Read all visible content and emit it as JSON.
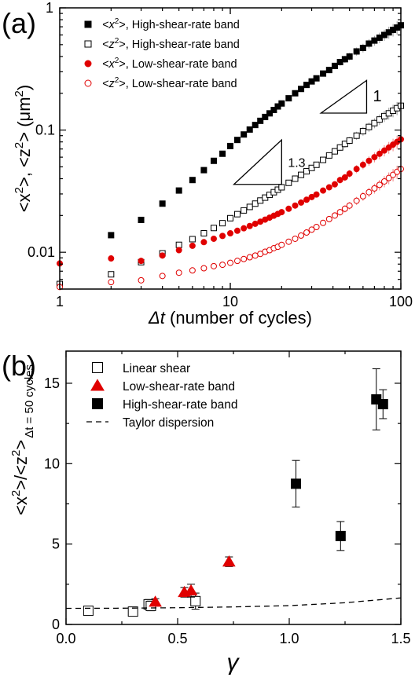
{
  "chart_data": [
    {
      "panel_label": "(a)",
      "type": "scatter",
      "x_scale": "log",
      "y_scale": "log",
      "xlim": [
        1,
        100
      ],
      "ylim": [
        0.005,
        1
      ],
      "x_ticks": [
        1,
        10,
        100
      ],
      "x_tick_labels": [
        "1",
        "10",
        "100"
      ],
      "y_ticks": [
        0.01,
        0.1,
        1
      ],
      "y_tick_labels": [
        "0.01",
        "0.1",
        "1"
      ],
      "xlabel_symbol": "Δt",
      "xlabel_text": " (number of cycles)",
      "ylabel": "<x 2>, <z 2> (μm2)",
      "legend_position": "top-left",
      "series": [
        {
          "name": "<x 2>, High-shear-rate band",
          "legend_text": ", High-shear-rate band",
          "legend_var": "<x 2>",
          "marker": "filled-square",
          "color": "#000000",
          "x": [
            2,
            3,
            4,
            5,
            6,
            7,
            8,
            9,
            10,
            11,
            12,
            13,
            14,
            15,
            16,
            17,
            18,
            19,
            20,
            22,
            24,
            26,
            28,
            30,
            32,
            35,
            38,
            41,
            44,
            47,
            50,
            55,
            60,
            65,
            70,
            75,
            80,
            85,
            90,
            95,
            100
          ],
          "y": [
            0.0138,
            0.0184,
            0.025,
            0.032,
            0.039,
            0.047,
            0.056,
            0.064,
            0.074,
            0.083,
            0.092,
            0.101,
            0.11,
            0.119,
            0.128,
            0.137,
            0.146,
            0.156,
            0.165,
            0.182,
            0.2,
            0.217,
            0.234,
            0.25,
            0.265,
            0.29,
            0.31,
            0.335,
            0.36,
            0.38,
            0.4,
            0.44,
            0.47,
            0.51,
            0.54,
            0.57,
            0.6,
            0.63,
            0.66,
            0.69,
            0.72
          ]
        },
        {
          "name": "<z 2>, High-shear-rate band",
          "legend_text": ", High-shear-rate band",
          "legend_var": "<z 2>",
          "marker": "open-square",
          "color": "#000000",
          "x": [
            1,
            2,
            3,
            4,
            5,
            6,
            7,
            8,
            9,
            10,
            11,
            12,
            13,
            14,
            15,
            16,
            17,
            18,
            19,
            20,
            22,
            24,
            26,
            28,
            30,
            32,
            35,
            38,
            41,
            44,
            47,
            50,
            55,
            60,
            65,
            70,
            75,
            80,
            85,
            90,
            95,
            100
          ],
          "y": [
            0.0055,
            0.0066,
            0.0083,
            0.0098,
            0.0115,
            0.0128,
            0.0143,
            0.0158,
            0.0173,
            0.019,
            0.0205,
            0.022,
            0.0235,
            0.025,
            0.0265,
            0.028,
            0.0295,
            0.031,
            0.0325,
            0.034,
            0.037,
            0.04,
            0.043,
            0.046,
            0.049,
            0.052,
            0.057,
            0.062,
            0.067,
            0.072,
            0.077,
            0.082,
            0.09,
            0.098,
            0.106,
            0.114,
            0.122,
            0.13,
            0.137,
            0.144,
            0.151,
            0.158
          ]
        },
        {
          "name": "<x 2>, Low-shear-rate band",
          "legend_text": ", Low-shear-rate band",
          "legend_var": "<x 2>",
          "marker": "filled-circle",
          "color": "#e00000",
          "x": [
            1,
            2,
            3,
            4,
            5,
            6,
            7,
            8,
            9,
            10,
            11,
            12,
            13,
            14,
            15,
            16,
            17,
            18,
            19,
            20,
            22,
            24,
            26,
            28,
            30,
            32,
            35,
            38,
            41,
            44,
            47,
            50,
            55,
            60,
            65,
            70,
            75,
            80,
            85,
            90,
            95,
            100
          ],
          "y": [
            0.0081,
            0.0089,
            0.0085,
            0.0094,
            0.0104,
            0.0113,
            0.0121,
            0.0129,
            0.0136,
            0.0143,
            0.015,
            0.0157,
            0.0164,
            0.0171,
            0.0178,
            0.0185,
            0.0192,
            0.0199,
            0.0206,
            0.0213,
            0.0227,
            0.0241,
            0.0255,
            0.0269,
            0.0283,
            0.0297,
            0.032,
            0.034,
            0.036,
            0.039,
            0.041,
            0.044,
            0.048,
            0.052,
            0.056,
            0.06,
            0.064,
            0.068,
            0.072,
            0.076,
            0.08,
            0.084
          ]
        },
        {
          "name": "<z 2>, Low-shear-rate band",
          "legend_text": ", Low-shear-rate band",
          "legend_var": "<z 2>",
          "marker": "open-circle",
          "color": "#e00000",
          "x": [
            1,
            2,
            3,
            4,
            5,
            6,
            7,
            8,
            9,
            10,
            11,
            12,
            13,
            14,
            15,
            16,
            17,
            18,
            19,
            20,
            22,
            24,
            26,
            28,
            30,
            32,
            35,
            38,
            41,
            44,
            47,
            50,
            55,
            60,
            65,
            70,
            75,
            80,
            85,
            90,
            95,
            100
          ],
          "y": [
            0.0052,
            0.0057,
            0.0059,
            0.0064,
            0.0068,
            0.0071,
            0.0074,
            0.0077,
            0.0079,
            0.0082,
            0.0085,
            0.0088,
            0.0091,
            0.0094,
            0.0097,
            0.0101,
            0.0104,
            0.0108,
            0.0111,
            0.0115,
            0.0122,
            0.0129,
            0.0137,
            0.0145,
            0.0153,
            0.0161,
            0.0174,
            0.0187,
            0.02,
            0.0213,
            0.0227,
            0.0241,
            0.0264,
            0.0287,
            0.031,
            0.0333,
            0.0356,
            0.038,
            0.0405,
            0.043,
            0.0455,
            0.048
          ]
        }
      ],
      "annotations": [
        {
          "label": "1.3",
          "slope": 1.3,
          "x_start": 10.5,
          "x_end": 20,
          "y_at_end": 0.083
        },
        {
          "label": "1",
          "slope": 1,
          "x_start": 34,
          "x_end": 63,
          "y_at_end": 0.255
        }
      ]
    },
    {
      "panel_label": "(b)",
      "type": "scatter",
      "xlim": [
        0.0,
        1.5
      ],
      "ylim": [
        0,
        17
      ],
      "x_ticks": [
        0.0,
        0.5,
        1.0,
        1.5
      ],
      "x_tick_labels": [
        "0.0",
        "0.5",
        "1.0",
        "1.5"
      ],
      "y_ticks": [
        0,
        5,
        10,
        15
      ],
      "y_tick_labels": [
        "0",
        "5",
        "10",
        "15"
      ],
      "xlabel": "γ",
      "ylabel_main": "<x 2>/<z 2>",
      "ylabel_sub": "Δt = 50 cycles",
      "legend_position": "top-left",
      "series": [
        {
          "name": "Linear shear",
          "marker": "open-square",
          "color": "#000000",
          "points": [
            {
              "x": 0.1,
              "y": 0.85,
              "err": 0.2
            },
            {
              "x": 0.3,
              "y": 0.8,
              "err": 0.2
            },
            {
              "x": 0.37,
              "y": 1.25,
              "err": 0.3
            },
            {
              "x": 0.38,
              "y": 1.15,
              "err": 0.3
            },
            {
              "x": 0.58,
              "y": 1.45,
              "err": 0.5
            }
          ]
        },
        {
          "name": "Low-shear-rate band",
          "marker": "filled-triangle",
          "color": "#e00000",
          "points": [
            {
              "x": 0.4,
              "y": 1.4,
              "err": 0.2
            },
            {
              "x": 0.53,
              "y": 2.0,
              "err": 0.3
            },
            {
              "x": 0.56,
              "y": 2.1,
              "err": 0.4
            },
            {
              "x": 0.73,
              "y": 3.9,
              "err": 0.3
            }
          ]
        },
        {
          "name": "High-shear-rate band",
          "marker": "filled-square",
          "color": "#000000",
          "points": [
            {
              "x": 1.03,
              "y": 8.75,
              "err": 1.45
            },
            {
              "x": 1.23,
              "y": 5.5,
              "err": 0.9
            },
            {
              "x": 1.39,
              "y": 14.0,
              "err": 1.9
            },
            {
              "x": 1.42,
              "y": 13.7,
              "err": 0.9
            }
          ]
        },
        {
          "name": "Taylor dispersion",
          "marker": "dashed-line",
          "color": "#000000",
          "curve": {
            "x": [
              0.0,
              0.25,
              0.5,
              0.75,
              1.0,
              1.25,
              1.5
            ],
            "y": [
              1.0,
              1.01,
              1.04,
              1.09,
              1.17,
              1.35,
              1.65
            ]
          }
        }
      ]
    }
  ]
}
